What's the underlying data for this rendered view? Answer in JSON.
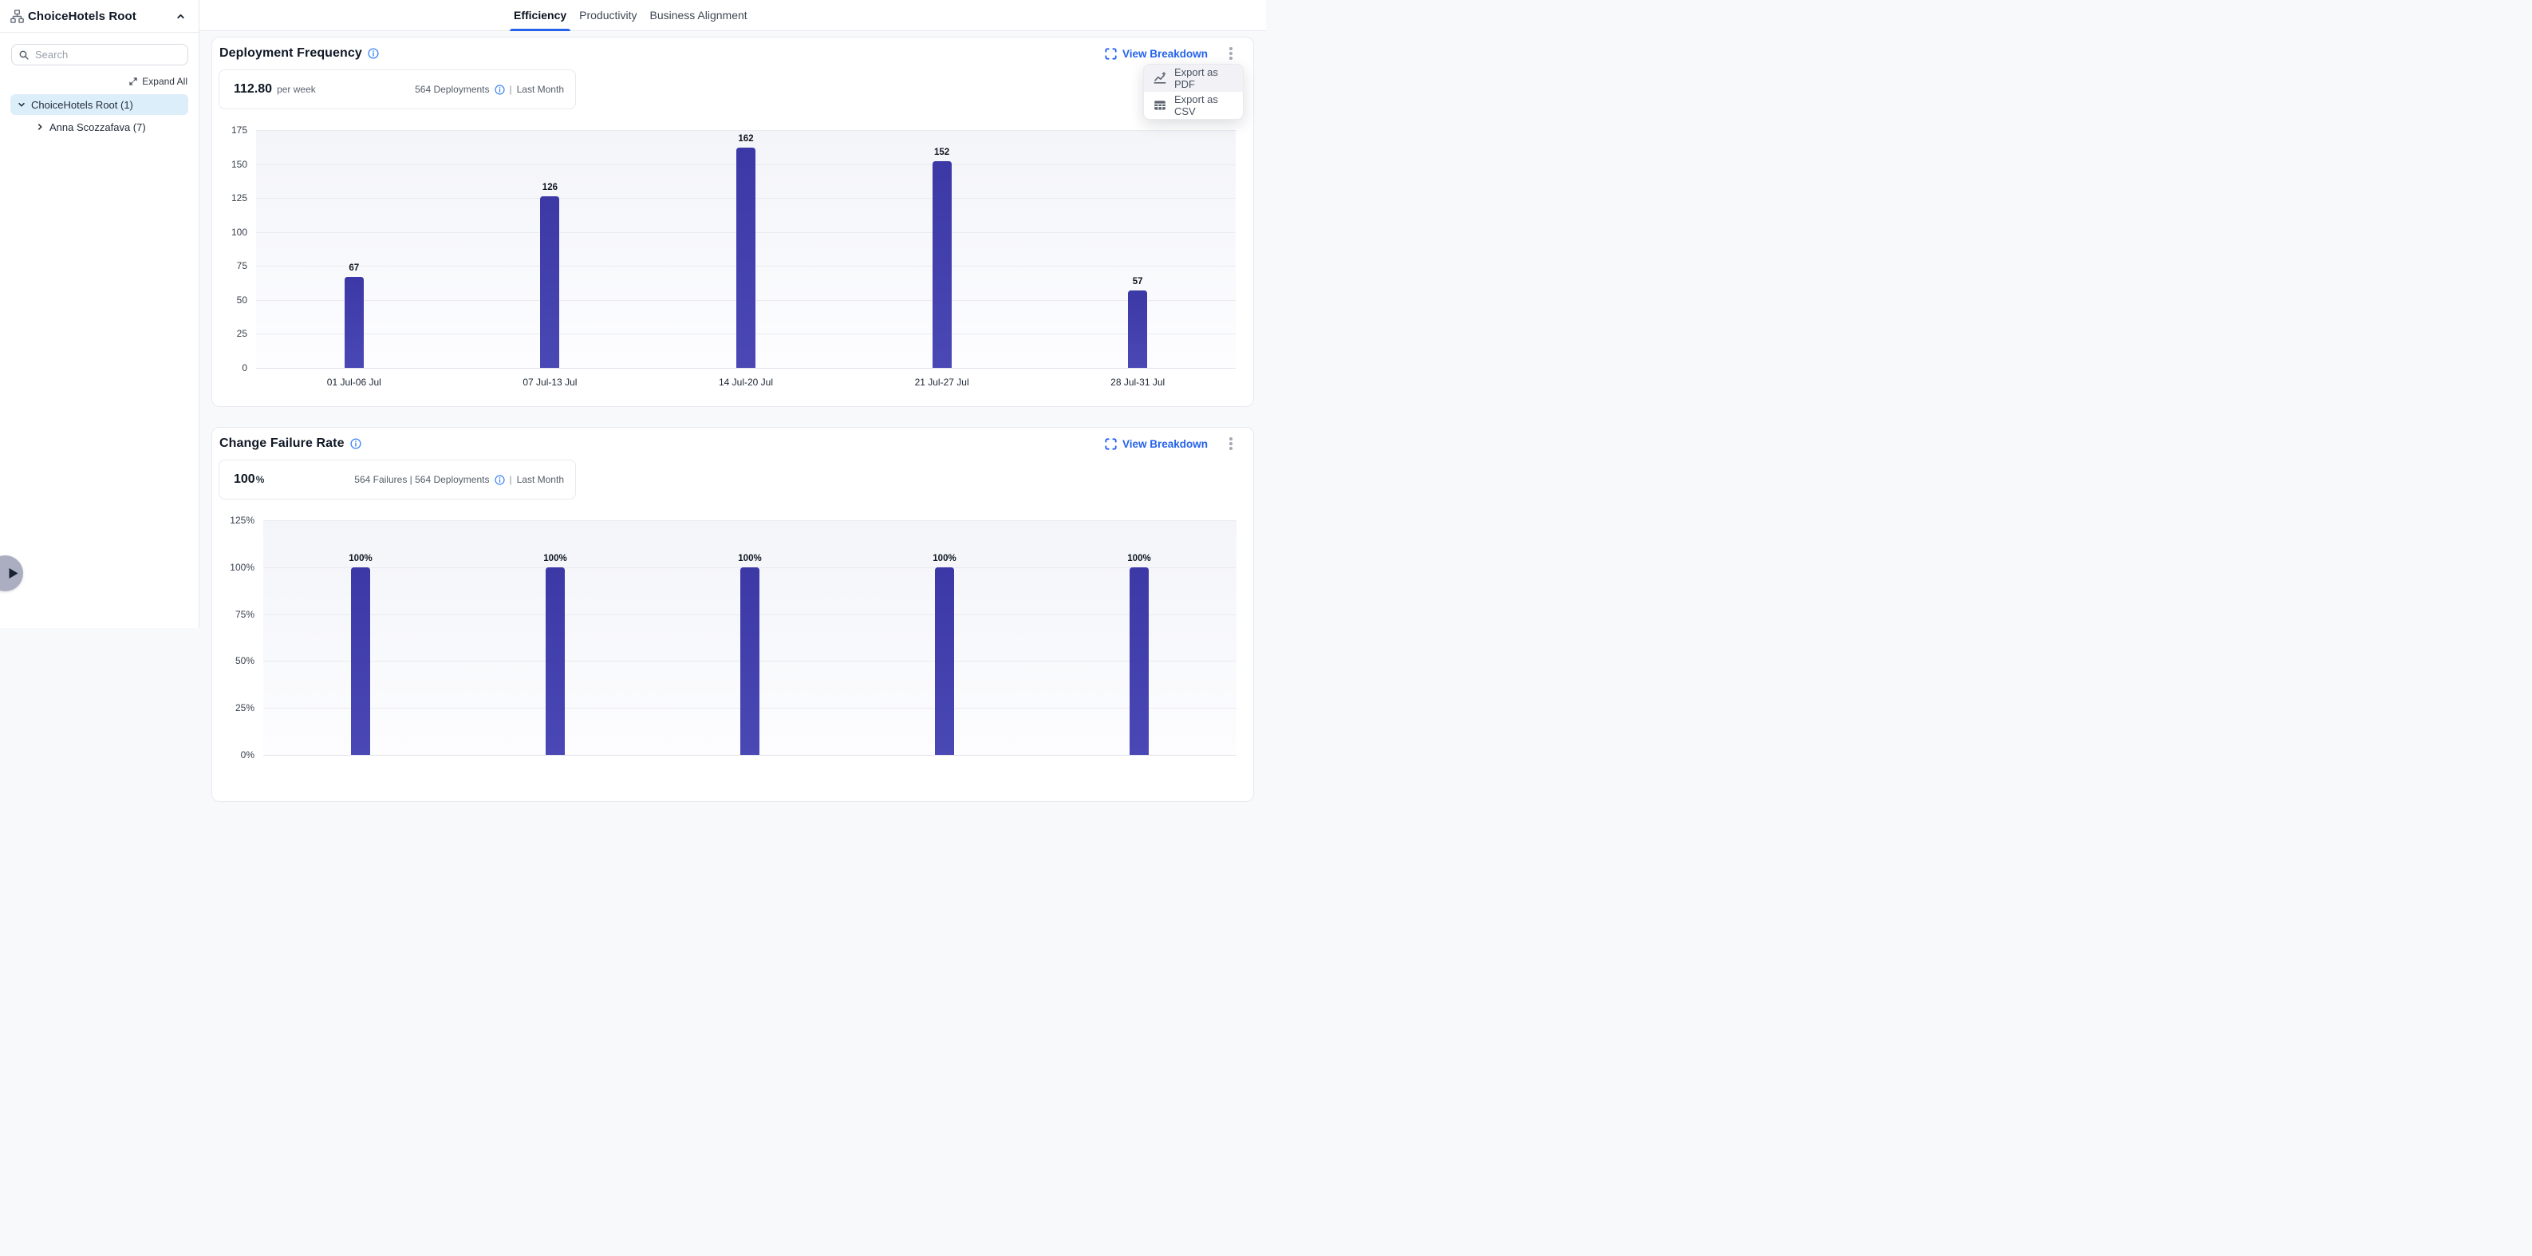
{
  "sidebar": {
    "title": "ChoiceHotels Root",
    "search": {
      "placeholder": "Search"
    },
    "expand_all_label": "Expand All",
    "tree": [
      {
        "label": "ChoiceHotels Root (1)",
        "state": "expanded",
        "selected": true
      },
      {
        "label": "Anna Scozzafava (7)",
        "state": "collapsed",
        "selected": false
      }
    ]
  },
  "tabs": [
    {
      "label": "Efficiency",
      "active": true
    },
    {
      "label": "Productivity",
      "active": false
    },
    {
      "label": "Business Alignment",
      "active": false
    }
  ],
  "cards": [
    {
      "title": "Deployment Frequency",
      "view_breakdown_label": "View Breakdown",
      "stat": {
        "value": "112.80",
        "unit": "per week",
        "meta": "564 Deployments",
        "divider": "|",
        "period": "Last Month"
      }
    },
    {
      "title": "Change Failure Rate",
      "view_breakdown_label": "View Breakdown",
      "stat": {
        "value": "100",
        "unit": "%",
        "meta": "564 Failures | 564 Deployments",
        "divider": "|",
        "period": "Last Month"
      }
    }
  ],
  "export_menu": {
    "items": [
      {
        "label": "Export as PDF",
        "icon": "chart-line-icon"
      },
      {
        "label": "Export as CSV",
        "icon": "table-icon"
      }
    ]
  },
  "chart_data": [
    {
      "type": "bar",
      "title": "Deployment Frequency",
      "categories": [
        "01 Jul-06 Jul",
        "07 Jul-13 Jul",
        "14 Jul-20 Jul",
        "21 Jul-27 Jul",
        "28 Jul-31 Jul"
      ],
      "values": [
        67,
        126,
        162,
        152,
        57
      ],
      "value_labels": [
        "67",
        "126",
        "162",
        "152",
        "57"
      ],
      "xlabel": "",
      "ylabel": "",
      "ylim": [
        0,
        175
      ],
      "yticks": [
        0,
        25,
        50,
        75,
        100,
        125,
        150,
        175
      ],
      "tick_suffix": "",
      "grid": true,
      "legend": false,
      "bar_color": "#3c3aa9"
    },
    {
      "type": "bar",
      "title": "Change Failure Rate",
      "values": [
        100,
        100,
        100,
        100,
        100
      ],
      "value_labels": [
        "100%",
        "100%",
        "100%",
        "100%",
        "100%"
      ],
      "xlabel": "",
      "ylabel": "",
      "ylim": [
        0,
        125
      ],
      "yticks": [
        0,
        25,
        50,
        75,
        100,
        125
      ],
      "tick_suffix": "%",
      "grid": true,
      "legend": false,
      "bar_color": "#3c3aa9"
    }
  ],
  "colors": {
    "accent_blue": "#2563eb",
    "bar_indigo": "#3c3aa9",
    "selected_row_bg": "#ddeefb",
    "info_icon_blue": "#3b82f6"
  }
}
